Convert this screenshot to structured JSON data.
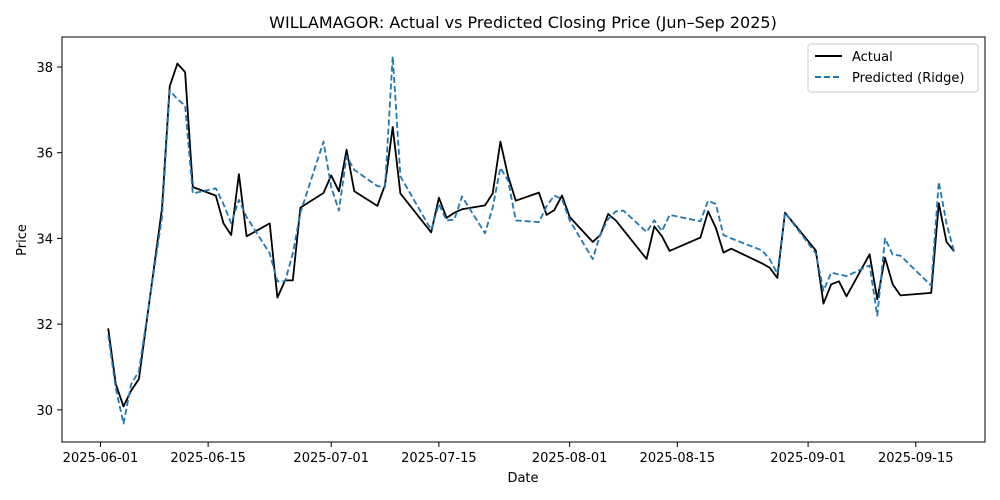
{
  "chart_data": {
    "type": "line",
    "title": "WILLAMAGOR: Actual vs Predicted Closing Price (Jun–Sep 2025)",
    "xlabel": "Date",
    "ylabel": "Price",
    "xlim": [
      "2025-05-27",
      "2025-09-24"
    ],
    "ylim": [
      29.25,
      38.7
    ],
    "x_ticks": [
      "2025-06-01",
      "2025-06-15",
      "2025-07-01",
      "2025-07-15",
      "2025-08-01",
      "2025-08-15",
      "2025-09-01",
      "2025-09-15"
    ],
    "y_ticks": [
      30,
      32,
      34,
      36,
      38
    ],
    "legend_position": "top-right",
    "grid": false,
    "series": [
      {
        "name": "Actual",
        "color": "#000000",
        "style": "solid",
        "points": [
          [
            "2025-06-02",
            31.9
          ],
          [
            "2025-06-03",
            30.6
          ],
          [
            "2025-06-04",
            30.08
          ],
          [
            "2025-06-05",
            30.45
          ],
          [
            "2025-06-06",
            30.72
          ],
          [
            "2025-06-09",
            34.7
          ],
          [
            "2025-06-10",
            37.55
          ],
          [
            "2025-06-11",
            38.08
          ],
          [
            "2025-06-12",
            37.88
          ],
          [
            "2025-06-13",
            35.2
          ],
          [
            "2025-06-16",
            35.0
          ],
          [
            "2025-06-17",
            34.35
          ],
          [
            "2025-06-18",
            34.08
          ],
          [
            "2025-06-19",
            35.5
          ],
          [
            "2025-06-20",
            34.05
          ],
          [
            "2025-06-23",
            34.35
          ],
          [
            "2025-06-24",
            32.62
          ],
          [
            "2025-06-25",
            33.02
          ],
          [
            "2025-06-26",
            33.02
          ],
          [
            "2025-06-27",
            34.72
          ],
          [
            "2025-06-30",
            35.06
          ],
          [
            "2025-07-01",
            35.47
          ],
          [
            "2025-07-02",
            35.1
          ],
          [
            "2025-07-03",
            36.07
          ],
          [
            "2025-07-04",
            35.1
          ],
          [
            "2025-07-07",
            34.76
          ],
          [
            "2025-07-08",
            35.25
          ],
          [
            "2025-07-09",
            36.6
          ],
          [
            "2025-07-10",
            35.05
          ],
          [
            "2025-07-14",
            34.14
          ],
          [
            "2025-07-15",
            34.95
          ],
          [
            "2025-07-16",
            34.48
          ],
          [
            "2025-07-17",
            34.6
          ],
          [
            "2025-07-18",
            34.68
          ],
          [
            "2025-07-21",
            34.77
          ],
          [
            "2025-07-22",
            35.05
          ],
          [
            "2025-07-23",
            36.26
          ],
          [
            "2025-07-24",
            35.45
          ],
          [
            "2025-07-25",
            34.88
          ],
          [
            "2025-07-28",
            35.07
          ],
          [
            "2025-07-29",
            34.55
          ],
          [
            "2025-07-30",
            34.66
          ],
          [
            "2025-07-31",
            35.0
          ],
          [
            "2025-08-01",
            34.5
          ],
          [
            "2025-08-04",
            33.92
          ],
          [
            "2025-08-05",
            34.08
          ],
          [
            "2025-08-06",
            34.57
          ],
          [
            "2025-08-07",
            34.42
          ],
          [
            "2025-08-11",
            33.52
          ],
          [
            "2025-08-12",
            34.28
          ],
          [
            "2025-08-13",
            34.05
          ],
          [
            "2025-08-14",
            33.71
          ],
          [
            "2025-08-18",
            34.02
          ],
          [
            "2025-08-19",
            34.63
          ],
          [
            "2025-08-20",
            34.25
          ],
          [
            "2025-08-21",
            33.67
          ],
          [
            "2025-08-22",
            33.76
          ],
          [
            "2025-08-26",
            33.42
          ],
          [
            "2025-08-27",
            33.32
          ],
          [
            "2025-08-28",
            33.08
          ],
          [
            "2025-08-29",
            34.6
          ],
          [
            "2025-09-02",
            33.72
          ],
          [
            "2025-09-03",
            32.48
          ],
          [
            "2025-09-04",
            32.93
          ],
          [
            "2025-09-05",
            33.0
          ],
          [
            "2025-09-06",
            32.65
          ],
          [
            "2025-09-09",
            33.63
          ],
          [
            "2025-09-10",
            32.58
          ],
          [
            "2025-09-11",
            33.55
          ],
          [
            "2025-09-12",
            32.93
          ],
          [
            "2025-09-13",
            32.67
          ],
          [
            "2025-09-17",
            32.73
          ],
          [
            "2025-09-18",
            34.82
          ],
          [
            "2025-09-19",
            33.92
          ],
          [
            "2025-09-20",
            33.7
          ]
        ]
      },
      {
        "name": "Predicted (Ridge)",
        "color": "#1f77b4",
        "style": "dashed",
        "points": [
          [
            "2025-06-02",
            31.75
          ],
          [
            "2025-06-03",
            30.5
          ],
          [
            "2025-06-04",
            29.68
          ],
          [
            "2025-06-05",
            30.6
          ],
          [
            "2025-06-06",
            30.9
          ],
          [
            "2025-06-09",
            34.5
          ],
          [
            "2025-06-10",
            37.45
          ],
          [
            "2025-06-11",
            37.25
          ],
          [
            "2025-06-12",
            37.1
          ],
          [
            "2025-06-13",
            35.05
          ],
          [
            "2025-06-16",
            35.17
          ],
          [
            "2025-06-17",
            34.8
          ],
          [
            "2025-06-18",
            34.35
          ],
          [
            "2025-06-19",
            34.9
          ],
          [
            "2025-06-20",
            34.5
          ],
          [
            "2025-06-23",
            33.65
          ],
          [
            "2025-06-24",
            33.0
          ],
          [
            "2025-06-25",
            33.0
          ],
          [
            "2025-06-26",
            33.65
          ],
          [
            "2025-06-27",
            34.6
          ],
          [
            "2025-06-30",
            36.26
          ],
          [
            "2025-07-01",
            35.2
          ],
          [
            "2025-07-02",
            34.65
          ],
          [
            "2025-07-03",
            35.92
          ],
          [
            "2025-07-04",
            35.6
          ],
          [
            "2025-07-07",
            35.22
          ],
          [
            "2025-07-08",
            35.2
          ],
          [
            "2025-07-09",
            38.25
          ],
          [
            "2025-07-10",
            35.45
          ],
          [
            "2025-07-14",
            34.2
          ],
          [
            "2025-07-15",
            34.8
          ],
          [
            "2025-07-16",
            34.42
          ],
          [
            "2025-07-17",
            34.44
          ],
          [
            "2025-07-18",
            34.98
          ],
          [
            "2025-07-21",
            34.12
          ],
          [
            "2025-07-22",
            34.72
          ],
          [
            "2025-07-23",
            35.65
          ],
          [
            "2025-07-24",
            35.35
          ],
          [
            "2025-07-25",
            34.42
          ],
          [
            "2025-07-28",
            34.38
          ],
          [
            "2025-07-29",
            34.75
          ],
          [
            "2025-07-30",
            35.0
          ],
          [
            "2025-07-31",
            34.92
          ],
          [
            "2025-08-01",
            34.42
          ],
          [
            "2025-08-04",
            33.52
          ],
          [
            "2025-08-05",
            34.1
          ],
          [
            "2025-08-06",
            34.45
          ],
          [
            "2025-08-07",
            34.63
          ],
          [
            "2025-08-08",
            34.65
          ],
          [
            "2025-08-11",
            34.15
          ],
          [
            "2025-08-12",
            34.42
          ],
          [
            "2025-08-13",
            34.17
          ],
          [
            "2025-08-14",
            34.55
          ],
          [
            "2025-08-18",
            34.4
          ],
          [
            "2025-08-19",
            34.88
          ],
          [
            "2025-08-20",
            34.8
          ],
          [
            "2025-08-21",
            34.08
          ],
          [
            "2025-08-22",
            34.0
          ],
          [
            "2025-08-26",
            33.72
          ],
          [
            "2025-08-27",
            33.52
          ],
          [
            "2025-08-28",
            33.18
          ],
          [
            "2025-08-29",
            34.6
          ],
          [
            "2025-09-02",
            33.65
          ],
          [
            "2025-09-03",
            32.78
          ],
          [
            "2025-09-04",
            33.2
          ],
          [
            "2025-09-06",
            33.12
          ],
          [
            "2025-09-09",
            33.37
          ],
          [
            "2025-09-10",
            32.2
          ],
          [
            "2025-09-11",
            34.0
          ],
          [
            "2025-09-12",
            33.62
          ],
          [
            "2025-09-13",
            33.6
          ],
          [
            "2025-09-17",
            32.9
          ],
          [
            "2025-09-18",
            35.32
          ],
          [
            "2025-09-19",
            34.35
          ],
          [
            "2025-09-20",
            33.68
          ]
        ]
      }
    ]
  }
}
